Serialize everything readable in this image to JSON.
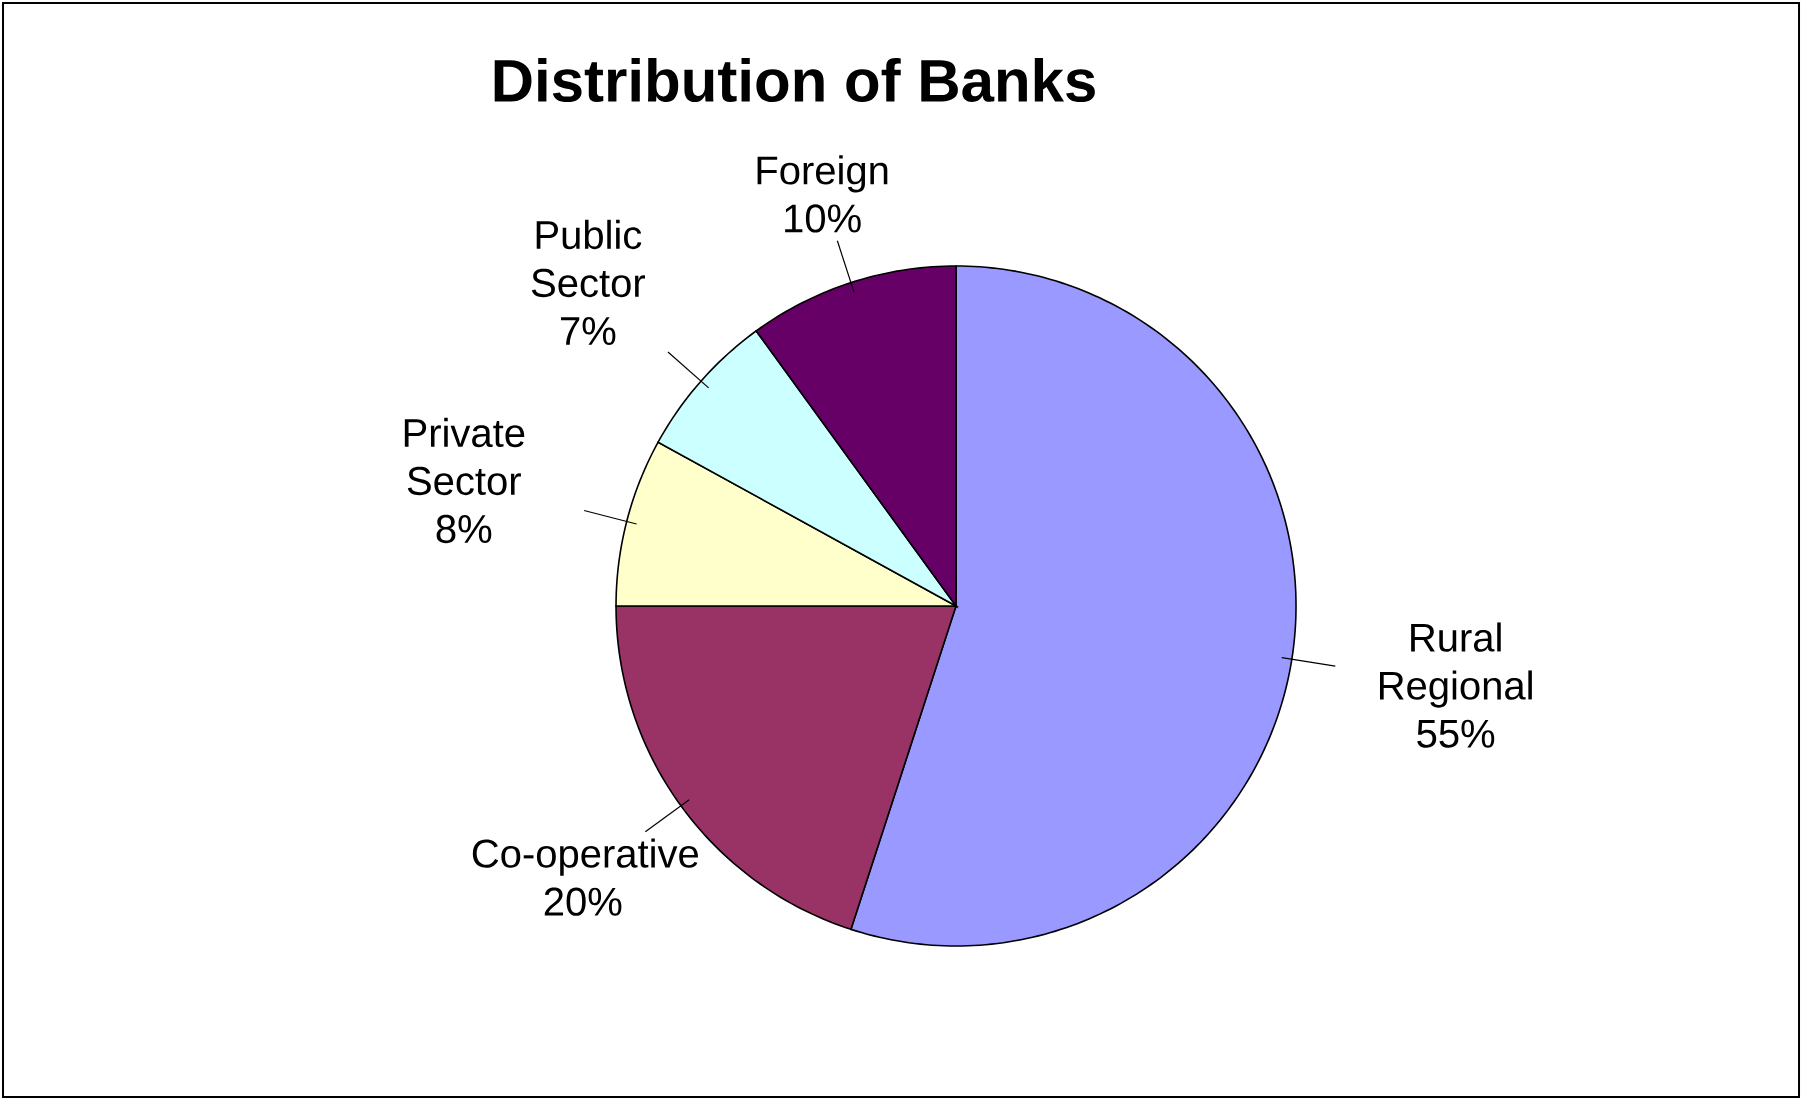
{
  "chart_data": {
    "type": "pie",
    "title": "Distribution of Banks",
    "categories": [
      "Rural Regional",
      "Co-operative",
      "Private Sector",
      "Public Sector",
      "Foreign"
    ],
    "values": [
      55,
      20,
      8,
      7,
      10
    ],
    "value_labels": [
      "55%",
      "20%",
      "8%",
      "7%",
      "10%"
    ],
    "colors": [
      "#9999ff",
      "#993366",
      "#ffffcc",
      "#ccffff",
      "#660066"
    ]
  }
}
